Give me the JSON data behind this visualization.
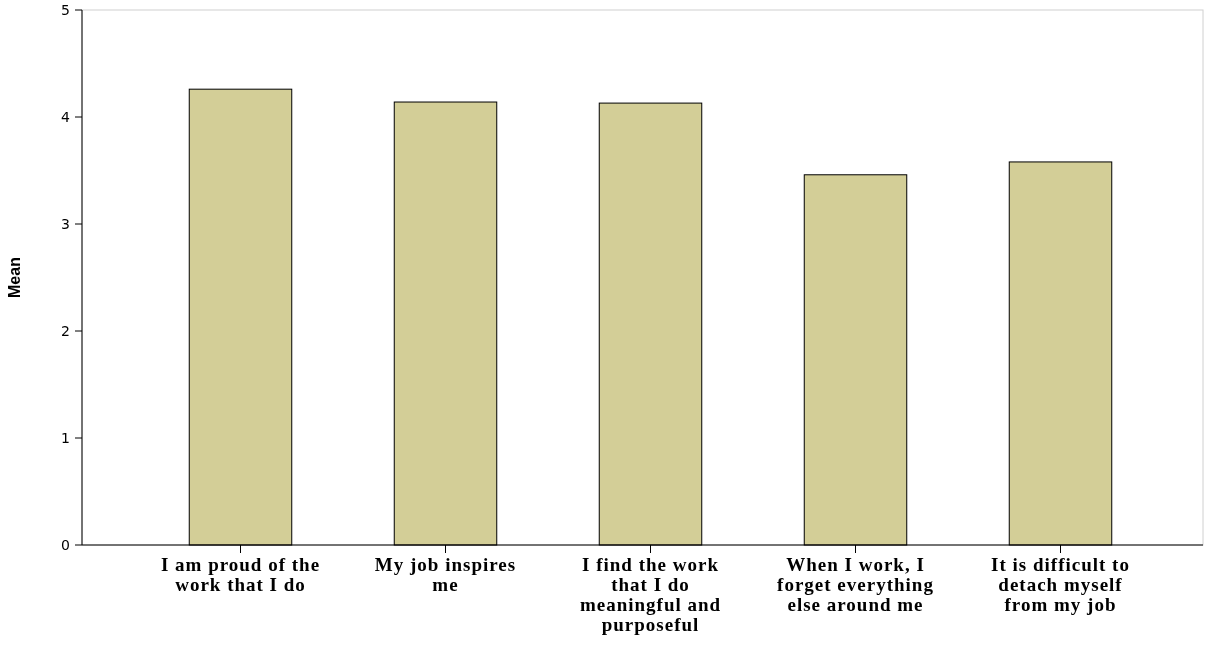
{
  "chart_data": {
    "type": "bar",
    "ylabel": "Mean",
    "categories": [
      "I am proud of the work that I do",
      "My job inspires me",
      "I find the work that I do meaningful and purposeful",
      "When I work, I forget everything else around me",
      "It is difficult to detach myself from my job"
    ],
    "values": [
      4.26,
      4.14,
      4.13,
      3.46,
      3.58
    ],
    "color": "#d3ce97",
    "ylim": [
      0,
      5
    ],
    "yticks": [
      0,
      1,
      2,
      3,
      4,
      5
    ],
    "grid": false
  }
}
